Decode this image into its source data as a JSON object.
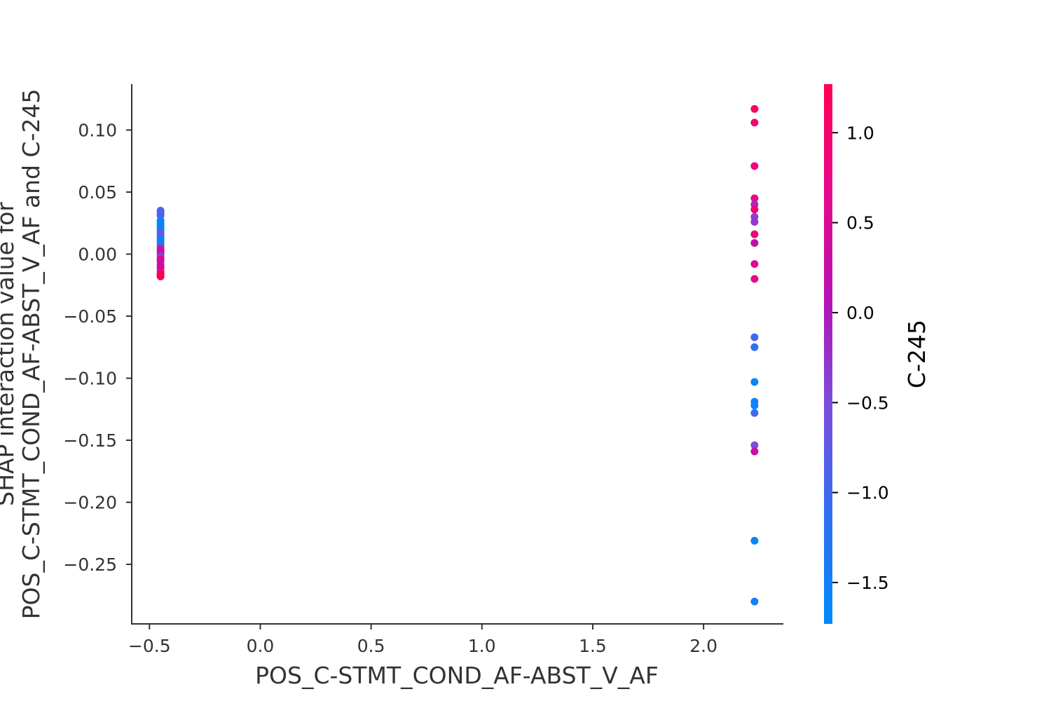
{
  "chart_data": {
    "type": "scatter",
    "title": "",
    "xlabel": "POS_C-STMT_COND_AF-ABST_V_AF",
    "ylabel_lines": [
      "SHAP interaction value for",
      "POS_C-STMT_COND_AF-ABST_V_AF and C-245"
    ],
    "xlim": [
      -0.58,
      2.36
    ],
    "ylim": [
      -0.298,
      0.137
    ],
    "x_ticks": [
      -0.5,
      0.0,
      0.5,
      1.0,
      1.5,
      2.0
    ],
    "x_tick_labels": [
      "−0.5",
      "0.0",
      "0.5",
      "1.0",
      "1.5",
      "2.0"
    ],
    "y_ticks": [
      0.1,
      0.05,
      0.0,
      -0.05,
      -0.1,
      -0.15,
      -0.2,
      -0.25
    ],
    "y_tick_labels": [
      "0.10",
      "0.05",
      "0.00",
      "−0.05",
      "−0.10",
      "−0.15",
      "−0.20",
      "−0.25"
    ],
    "grid": false,
    "colorbar": {
      "label": "C-245",
      "range": [
        -1.73,
        1.27
      ],
      "ticks": [
        1.0,
        0.5,
        0.0,
        -0.5,
        -1.0,
        -1.5
      ],
      "tick_labels": [
        "1.0",
        "0.5",
        "0.0",
        "−0.5",
        "−1.0",
        "−1.5"
      ],
      "colors": [
        "#008afb",
        "#2f6ff0",
        "#7a4fdc",
        "#b512b5",
        "#e8088a",
        "#ff0052"
      ]
    },
    "points": [
      {
        "x": -0.45,
        "y": 0.035,
        "c": -0.9
      },
      {
        "x": -0.45,
        "y": 0.033,
        "c": -1.0
      },
      {
        "x": -0.45,
        "y": 0.031,
        "c": -0.8
      },
      {
        "x": -0.45,
        "y": 0.027,
        "c": -1.6
      },
      {
        "x": -0.45,
        "y": 0.025,
        "c": -1.5
      },
      {
        "x": -0.45,
        "y": 0.024,
        "c": -1.7
      },
      {
        "x": -0.45,
        "y": 0.022,
        "c": -1.6
      },
      {
        "x": -0.45,
        "y": 0.02,
        "c": -1.4
      },
      {
        "x": -0.45,
        "y": 0.018,
        "c": -1.2
      },
      {
        "x": -0.45,
        "y": 0.016,
        "c": -0.7
      },
      {
        "x": -0.45,
        "y": 0.014,
        "c": -0.6
      },
      {
        "x": -0.45,
        "y": 0.012,
        "c": -1.5
      },
      {
        "x": -0.45,
        "y": 0.01,
        "c": -1.6
      },
      {
        "x": -0.45,
        "y": 0.008,
        "c": -1.3
      },
      {
        "x": -0.45,
        "y": 0.006,
        "c": -1.1
      },
      {
        "x": -0.45,
        "y": 0.004,
        "c": 0.6
      },
      {
        "x": -0.45,
        "y": 0.002,
        "c": 0.3
      },
      {
        "x": -0.45,
        "y": 0.0,
        "c": 0.0
      },
      {
        "x": -0.45,
        "y": -0.002,
        "c": -0.4
      },
      {
        "x": -0.45,
        "y": -0.004,
        "c": 0.4
      },
      {
        "x": -0.45,
        "y": -0.006,
        "c": 0.5
      },
      {
        "x": -0.45,
        "y": -0.009,
        "c": 0.2
      },
      {
        "x": -0.45,
        "y": -0.011,
        "c": 0.3
      },
      {
        "x": -0.45,
        "y": -0.014,
        "c": 0.8
      },
      {
        "x": -0.45,
        "y": -0.016,
        "c": 1.0
      },
      {
        "x": -0.45,
        "y": -0.017,
        "c": 1.1
      },
      {
        "x": -0.45,
        "y": -0.018,
        "c": 1.2
      },
      {
        "x": 2.23,
        "y": 0.117,
        "c": 1.1
      },
      {
        "x": 2.23,
        "y": 0.106,
        "c": 0.9
      },
      {
        "x": 2.23,
        "y": 0.071,
        "c": 0.8
      },
      {
        "x": 2.23,
        "y": 0.045,
        "c": 0.7
      },
      {
        "x": 2.23,
        "y": 0.04,
        "c": -0.2
      },
      {
        "x": 2.23,
        "y": 0.036,
        "c": 1.0
      },
      {
        "x": 2.23,
        "y": 0.03,
        "c": -0.4
      },
      {
        "x": 2.23,
        "y": 0.026,
        "c": -0.3
      },
      {
        "x": 2.23,
        "y": 0.016,
        "c": 0.8
      },
      {
        "x": 2.23,
        "y": 0.009,
        "c": 0.2
      },
      {
        "x": 2.23,
        "y": -0.008,
        "c": 0.6
      },
      {
        "x": 2.23,
        "y": -0.02,
        "c": 0.7
      },
      {
        "x": 2.23,
        "y": -0.067,
        "c": -1.0
      },
      {
        "x": 2.23,
        "y": -0.075,
        "c": -1.1
      },
      {
        "x": 2.23,
        "y": -0.103,
        "c": -1.6
      },
      {
        "x": 2.23,
        "y": -0.119,
        "c": -1.5
      },
      {
        "x": 2.23,
        "y": -0.122,
        "c": -1.6
      },
      {
        "x": 2.23,
        "y": -0.128,
        "c": -1.0
      },
      {
        "x": 2.23,
        "y": -0.154,
        "c": -0.5
      },
      {
        "x": 2.23,
        "y": -0.159,
        "c": 0.3
      },
      {
        "x": 2.23,
        "y": -0.231,
        "c": -1.6
      },
      {
        "x": 2.23,
        "y": -0.28,
        "c": -1.5
      }
    ]
  }
}
